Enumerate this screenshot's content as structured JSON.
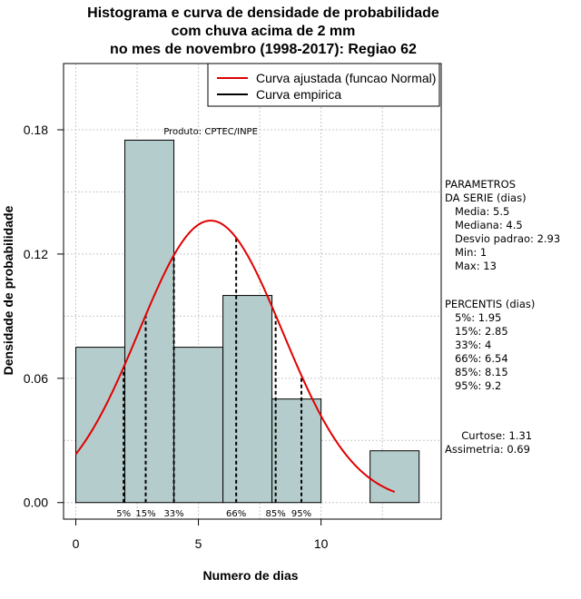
{
  "chart_data": {
    "type": "bar",
    "title_lines": [
      "Histograma e curva de densidade de probabilidade",
      "com chuva acima de 2 mm",
      "no mes de novembro (1998-2017): Regiao 62"
    ],
    "xlabel": "Numero de dias",
    "ylabel": "Densidade de probabilidade",
    "xlim": [
      -0.5,
      14.9
    ],
    "ylim": [
      -0.008,
      0.212
    ],
    "x_ticks": [
      0,
      5,
      10
    ],
    "y_ticks": [
      0.0,
      0.06,
      0.12,
      0.18
    ],
    "y_tick_labels": [
      "0.00",
      "0.06",
      "0.12",
      "0.18"
    ],
    "grid": true,
    "bars": [
      {
        "x0": 0,
        "x1": 2,
        "value": 0.075
      },
      {
        "x0": 2,
        "x1": 4,
        "value": 0.175
      },
      {
        "x0": 4,
        "x1": 6,
        "value": 0.075
      },
      {
        "x0": 6,
        "x1": 8,
        "value": 0.1
      },
      {
        "x0": 8,
        "x1": 10,
        "value": 0.05
      },
      {
        "x0": 10,
        "x1": 12,
        "value": 0.0
      },
      {
        "x0": 12,
        "x1": 14,
        "value": 0.025
      }
    ],
    "bar_color": "#b5cccc",
    "curve": {
      "name": "Curva ajustada (funcao Normal)",
      "color": "#e00000",
      "mean": 5.5,
      "sd": 2.93,
      "x_range": [
        0,
        13
      ]
    },
    "empirical": {
      "name": "Curva empirica",
      "color": "#000000"
    },
    "legend_position": "top-right",
    "percentiles": [
      {
        "label": "5%",
        "x": 1.95
      },
      {
        "label": "15%",
        "x": 2.85
      },
      {
        "label": "33%",
        "x": 4
      },
      {
        "label": "66%",
        "x": 6.54
      },
      {
        "label": "85%",
        "x": 8.15
      },
      {
        "label": "95%",
        "x": 9.2
      }
    ],
    "annotation": "Produto: CPTEC/INPE"
  },
  "side_panel": {
    "parametros": [
      "PARAMETROS",
      "DA SERIE (dias)",
      "   Media: 5.5",
      "   Mediana: 4.5",
      "   Desvio padrao: 2.93",
      "   Min: 1",
      "   Max: 13"
    ],
    "percentis": [
      "PERCENTIS (dias)",
      "   5%: 1.95",
      "   15%: 2.85",
      "   33%: 4",
      "   66%: 6.54",
      "   85%: 8.15",
      "   95%: 9.2"
    ],
    "stats": [
      "     Curtose: 1.31",
      "Assimetria: 0.69"
    ]
  }
}
